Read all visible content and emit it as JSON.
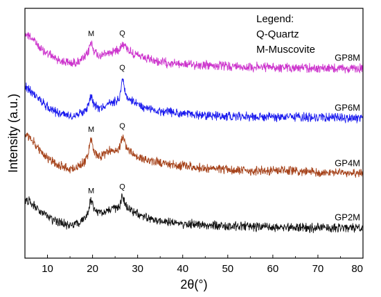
{
  "chart_data": {
    "type": "line",
    "xlabel": "2θ(°)",
    "ylabel": "Intensity (a.u.)",
    "xlim": [
      5,
      80
    ],
    "x_ticks": [
      10,
      20,
      30,
      40,
      50,
      60,
      70,
      80
    ],
    "y_ticks_shown": false,
    "grid": false,
    "legend": {
      "placement": "top-right",
      "lines": [
        "Legend:",
        "Q-Quartz",
        "M-Muscovite"
      ]
    },
    "series": [
      {
        "name": "GP8M",
        "color": "#cc33cc",
        "x": [
          5,
          6,
          7,
          8,
          9,
          10,
          12,
          14,
          15,
          16,
          17,
          18,
          19,
          19.5,
          19.8,
          20.2,
          21,
          22,
          23,
          24,
          25,
          26,
          26.6,
          27.5,
          28.5,
          30,
          32,
          35,
          40,
          45,
          50,
          55,
          60,
          65,
          70,
          75,
          80
        ],
        "values": [
          0.9,
          0.84,
          0.72,
          0.58,
          0.46,
          0.4,
          0.26,
          0.18,
          0.16,
          0.17,
          0.2,
          0.26,
          0.4,
          0.64,
          0.66,
          0.5,
          0.36,
          0.34,
          0.39,
          0.43,
          0.46,
          0.52,
          0.66,
          0.55,
          0.43,
          0.34,
          0.25,
          0.18,
          0.13,
          0.1,
          0.08,
          0.06,
          0.05,
          0.04,
          0.03,
          0.02,
          0.02
        ]
      },
      {
        "name": "GP6M",
        "color": "#1a1aee",
        "x": [
          5,
          6,
          7,
          8,
          9,
          10,
          12,
          14,
          15,
          16,
          17,
          18,
          19,
          19.5,
          19.8,
          20.2,
          21,
          22,
          23,
          24,
          25,
          26,
          26.6,
          27.5,
          28.5,
          30,
          32,
          35,
          40,
          45,
          50,
          55,
          60,
          65,
          70,
          75,
          80
        ],
        "values": [
          0.8,
          0.74,
          0.64,
          0.52,
          0.4,
          0.32,
          0.18,
          0.12,
          0.1,
          0.11,
          0.14,
          0.2,
          0.32,
          0.58,
          0.58,
          0.42,
          0.3,
          0.3,
          0.35,
          0.41,
          0.46,
          0.52,
          1.05,
          0.58,
          0.46,
          0.36,
          0.28,
          0.2,
          0.14,
          0.1,
          0.08,
          0.07,
          0.06,
          0.05,
          0.05,
          0.04,
          0.03
        ]
      },
      {
        "name": "GP4M",
        "color": "#a5421a",
        "x": [
          5,
          6,
          7,
          8,
          9,
          10,
          12,
          14,
          15,
          16,
          17,
          18,
          19,
          19.5,
          19.8,
          20.2,
          21,
          22,
          23,
          24,
          25,
          26,
          26.6,
          27.5,
          28.5,
          30,
          32,
          35,
          40,
          45,
          50,
          55,
          60,
          65,
          70,
          75,
          80
        ],
        "values": [
          0.98,
          0.92,
          0.8,
          0.64,
          0.5,
          0.42,
          0.26,
          0.18,
          0.15,
          0.17,
          0.21,
          0.3,
          0.46,
          0.88,
          0.9,
          0.6,
          0.46,
          0.48,
          0.55,
          0.6,
          0.62,
          0.66,
          0.98,
          0.7,
          0.55,
          0.44,
          0.36,
          0.3,
          0.22,
          0.16,
          0.12,
          0.1,
          0.12,
          0.09,
          0.06,
          0.05,
          0.05
        ]
      },
      {
        "name": "GP2M",
        "color": "#111111",
        "x": [
          5,
          6,
          7,
          8,
          9,
          10,
          12,
          14,
          15,
          16,
          17,
          18,
          19,
          19.5,
          19.8,
          20.2,
          21,
          22,
          23,
          24,
          25,
          26,
          26.6,
          27.5,
          28.5,
          30,
          32,
          35,
          40,
          45,
          50,
          55,
          60,
          65,
          70,
          75,
          80
        ],
        "values": [
          0.74,
          0.68,
          0.58,
          0.46,
          0.36,
          0.3,
          0.18,
          0.12,
          0.1,
          0.11,
          0.14,
          0.22,
          0.36,
          0.7,
          0.72,
          0.52,
          0.4,
          0.42,
          0.46,
          0.5,
          0.52,
          0.56,
          0.82,
          0.58,
          0.46,
          0.36,
          0.28,
          0.2,
          0.14,
          0.1,
          0.08,
          0.06,
          0.05,
          0.04,
          0.03,
          0.02,
          0.02
        ]
      }
    ],
    "annotations": [
      {
        "series": "GP8M",
        "label": "M",
        "x": 19.7
      },
      {
        "series": "GP8M",
        "label": "Q",
        "x": 26.6
      },
      {
        "series": "GP6M",
        "label": "Q",
        "x": 26.6
      },
      {
        "series": "GP4M",
        "label": "M",
        "x": 19.7
      },
      {
        "series": "GP4M",
        "label": "Q",
        "x": 26.6
      },
      {
        "series": "GP2M",
        "label": "M",
        "x": 19.7
      },
      {
        "series": "GP2M",
        "label": "Q",
        "x": 26.6
      }
    ]
  }
}
